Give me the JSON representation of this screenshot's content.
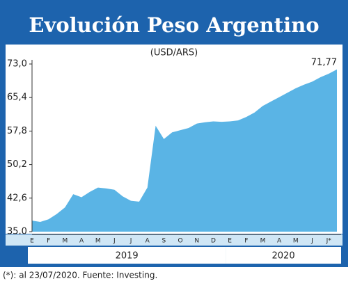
{
  "chart_data": {
    "type": "area",
    "title": "Evolución Peso Argentino",
    "subtitle": "(USD/ARS)",
    "categories": [
      "E",
      null,
      "F",
      null,
      "M",
      null,
      "A",
      null,
      "M",
      null,
      "J",
      null,
      "J",
      null,
      "A",
      null,
      "S",
      null,
      "O",
      null,
      "N",
      null,
      "D",
      null,
      "E",
      null,
      "F",
      null,
      "M",
      null,
      "A",
      null,
      "M",
      null,
      "J",
      null,
      "J*",
      null
    ],
    "values": [
      37.5,
      37.2,
      37.8,
      39.0,
      40.5,
      43.5,
      42.8,
      44.0,
      45.0,
      44.8,
      44.5,
      43.0,
      42.0,
      41.8,
      45.0,
      59.0,
      56.0,
      57.5,
      58.0,
      58.5,
      59.5,
      59.8,
      60.0,
      59.9,
      60.0,
      60.2,
      61.0,
      62.0,
      63.5,
      64.5,
      65.5,
      66.5,
      67.5,
      68.3,
      69.0,
      70.0,
      70.8,
      71.77
    ],
    "value_labels": [
      null,
      null,
      null,
      null,
      null,
      null,
      null,
      null,
      null,
      null,
      null,
      null,
      null,
      null,
      null,
      null,
      null,
      null,
      null,
      null,
      null,
      null,
      null,
      null,
      null,
      null,
      null,
      null,
      null,
      null,
      null,
      null,
      null,
      null,
      null,
      null,
      null,
      "71,77"
    ],
    "years": [
      "2019",
      "2020"
    ],
    "color": "#5ab4e5",
    "ylim": [
      35.0,
      73.0
    ],
    "yticks": [
      {
        "value": 35.0,
        "label": "35,0"
      },
      {
        "value": 42.6,
        "label": "42,6"
      },
      {
        "value": 50.2,
        "label": "50,2"
      },
      {
        "value": 57.8,
        "label": "57,8"
      },
      {
        "value": 65.4,
        "label": "65,4"
      },
      {
        "value": 73.0,
        "label": "73,0"
      }
    ],
    "note": "(*): al 23/07/2020. Fuente: Investing."
  }
}
